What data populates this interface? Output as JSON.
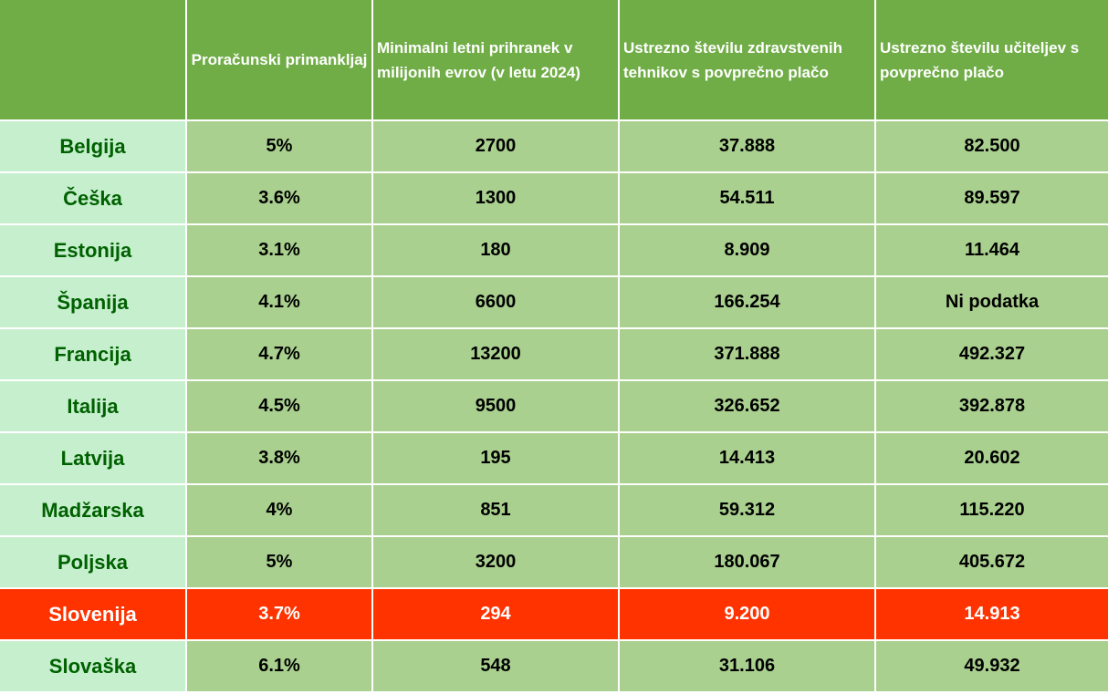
{
  "table": {
    "headers": [
      "",
      "Proračunski primankljaj",
      "Minimalni letni prihranek v milijonih evrov (v letu 2024)",
      "Ustrezno številu zdravstvenih tehnikov s povprečno plačo",
      "Ustrezno številu učiteljev s povprečno plačo"
    ],
    "rows": [
      [
        "Belgija",
        "5%",
        "2700",
        "37.888",
        "82.500"
      ],
      [
        "Češka",
        "3.6%",
        "1300",
        "54.511",
        "89.597"
      ],
      [
        "Estonija",
        "3.1%",
        "180",
        "8.909",
        "11.464"
      ],
      [
        "Španija",
        "4.1%",
        "6600",
        "166.254",
        "Ni podatka"
      ],
      [
        "Francija",
        "4.7%",
        "13200",
        "371.888",
        "492.327"
      ],
      [
        "Italija",
        "4.5%",
        "9500",
        "326.652",
        "392.878"
      ],
      [
        "Latvija",
        "3.8%",
        "195",
        "14.413",
        "20.602"
      ],
      [
        "Madžarska",
        "4%",
        "851",
        "59.312",
        "115.220"
      ],
      [
        "Poljska",
        "5%",
        "3200",
        "180.067",
        "405.672"
      ],
      [
        "Slovenija",
        "3.7%",
        "294",
        "9.200",
        "14.913"
      ],
      [
        "Slovaška",
        "6.1%",
        "548",
        "31.106",
        "49.932"
      ]
    ],
    "highlighted_row": "Slovenija"
  },
  "colors": {
    "header_bg": "#70ad47",
    "cell_bg": "#a9d08e",
    "country_bg": "#c6efce",
    "country_text": "#006100",
    "highlight_bg": "#ff3300"
  }
}
